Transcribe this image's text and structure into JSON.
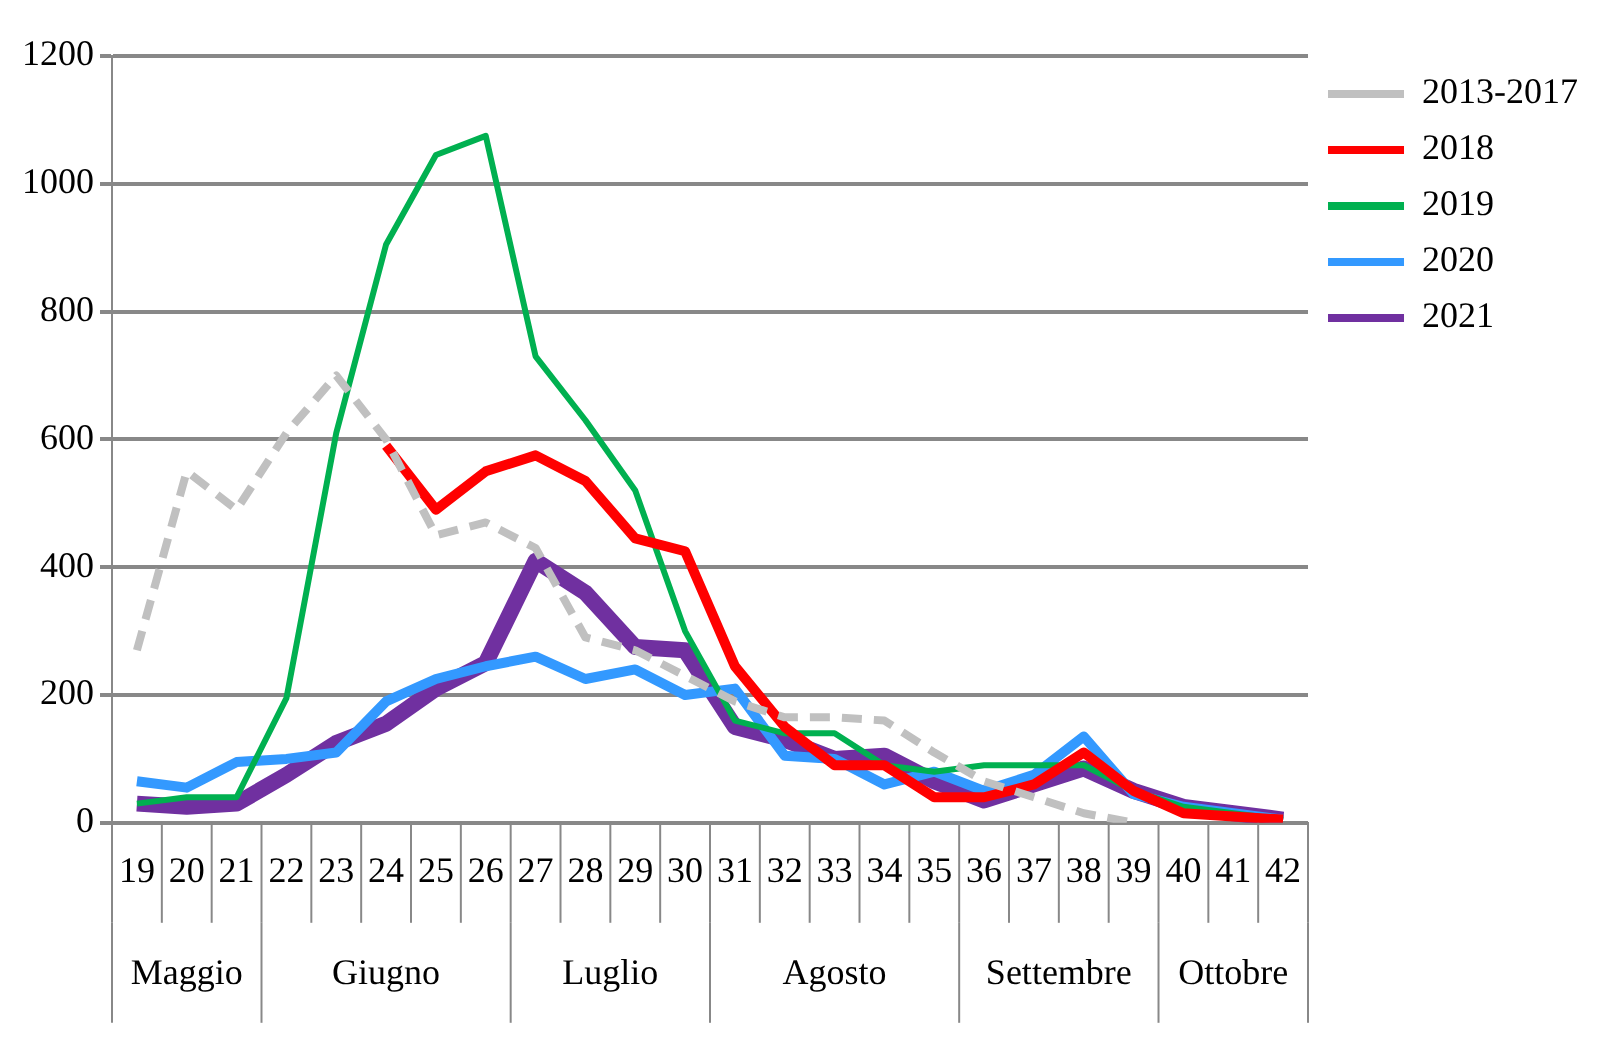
{
  "chart_data": {
    "type": "line",
    "categories": [
      "19",
      "20",
      "21",
      "22",
      "23",
      "24",
      "25",
      "26",
      "27",
      "28",
      "29",
      "30",
      "31",
      "32",
      "33",
      "34",
      "35",
      "36",
      "37",
      "38",
      "39",
      "40",
      "41",
      "42"
    ],
    "series": [
      {
        "name": "2013-2017",
        "color": "#c0c0c0",
        "line_style": "dashed",
        "values": [
          270,
          550,
          490,
          610,
          700,
          600,
          450,
          470,
          430,
          290,
          270,
          230,
          190,
          165,
          165,
          160,
          110,
          65,
          40,
          15,
          0,
          null,
          null,
          null
        ]
      },
      {
        "name": "2018",
        "color": "#ff0000",
        "values": [
          null,
          null,
          null,
          null,
          null,
          590,
          490,
          550,
          575,
          535,
          445,
          425,
          245,
          150,
          90,
          90,
          40,
          40,
          60,
          110,
          50,
          15,
          10,
          5
        ]
      },
      {
        "name": "2019",
        "color": "#00b050",
        "values": [
          30,
          40,
          40,
          195,
          610,
          905,
          1045,
          1075,
          730,
          630,
          520,
          300,
          160,
          140,
          140,
          90,
          80,
          90,
          90,
          90,
          50,
          25,
          15,
          5
        ]
      },
      {
        "name": "2020",
        "color": "#3399ff",
        "values": [
          65,
          55,
          95,
          100,
          110,
          190,
          225,
          245,
          260,
          225,
          240,
          200,
          210,
          105,
          100,
          60,
          80,
          50,
          75,
          135,
          45,
          25,
          15,
          5
        ]
      },
      {
        "name": "2021",
        "color": "#7030a0",
        "values": [
          30,
          25,
          30,
          75,
          125,
          155,
          210,
          250,
          410,
          360,
          275,
          270,
          150,
          130,
          100,
          105,
          65,
          35,
          60,
          85,
          50,
          25,
          15,
          5
        ]
      }
    ],
    "ylim": [
      0,
      1200
    ],
    "yticks": [
      0,
      200,
      400,
      600,
      800,
      1000,
      1200
    ],
    "grid": "y",
    "legend": "top right",
    "marker": "none",
    "line_style": "solid",
    "annotations": [
      "Maggio",
      "Giugno",
      "Luglio",
      "Agosto",
      "Settembre",
      "Ottobre"
    ]
  }
}
